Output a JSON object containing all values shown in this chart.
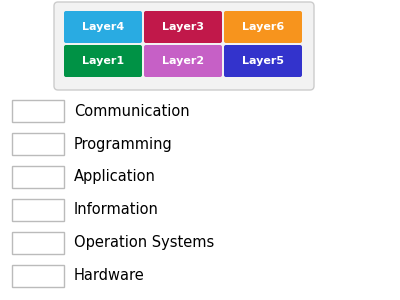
{
  "buttons": [
    {
      "label": "Layer4",
      "color": "#29ABE2",
      "row": 0,
      "col": 0
    },
    {
      "label": "Layer3",
      "color": "#C1184A",
      "row": 0,
      "col": 1
    },
    {
      "label": "Layer6",
      "color": "#F7941D",
      "row": 0,
      "col": 2
    },
    {
      "label": "Layer1",
      "color": "#009245",
      "row": 1,
      "col": 0
    },
    {
      "label": "Layer2",
      "color": "#C660C6",
      "row": 1,
      "col": 1
    },
    {
      "label": "Layer5",
      "color": "#3333CC",
      "row": 1,
      "col": 2
    }
  ],
  "items": [
    "Communication",
    "Programming",
    "Application",
    "Information",
    "Operation Systems",
    "Hardware"
  ],
  "bg_color": "#FFFFFF",
  "button_text_color": "#FFFFFF",
  "item_text_color": "#000000",
  "button_area_bg": "#F2F2F2",
  "button_area_border": "#CCCCCC"
}
